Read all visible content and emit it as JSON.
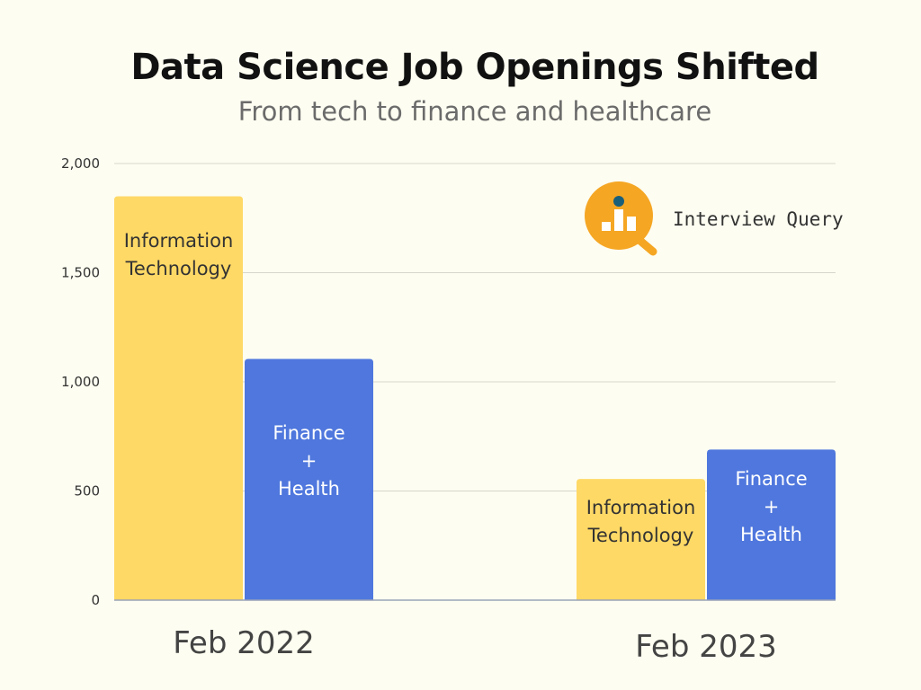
{
  "chart_data": {
    "type": "bar",
    "title": "Data Science Job Openings Shifted",
    "subtitle": "From tech to finance and healthcare",
    "categories": [
      "Feb 2022",
      "Feb 2023"
    ],
    "series": [
      {
        "name": "Information Technology",
        "values": [
          1850,
          555
        ],
        "color": "#ffd966",
        "label_lines": [
          "Information",
          "Technology"
        ],
        "label_color": "#333333"
      },
      {
        "name": "Finance + Health",
        "values": [
          1105,
          690
        ],
        "color": "#4f77dd",
        "label_lines": [
          "Finance",
          "+",
          "Health"
        ],
        "label_color": "#ffffff"
      }
    ],
    "ylim": [
      0,
      2000
    ],
    "yticks": [
      0,
      500,
      1000,
      1500,
      2000
    ],
    "ytick_labels": [
      "0",
      "500",
      "1,000",
      "1,500",
      "2,000"
    ],
    "xlabel": "",
    "ylabel": "",
    "grid": true,
    "legend": "none"
  },
  "brand": {
    "name": "Interview Query",
    "icon": "magnifier-bar-chart-icon",
    "accent_color": "#f5a623",
    "dot_color": "#1a5f7a"
  }
}
